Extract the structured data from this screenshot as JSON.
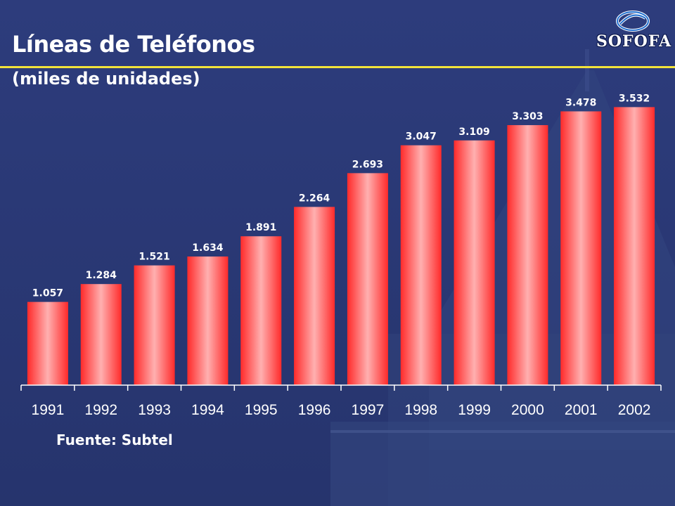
{
  "header": {
    "title": "Líneas de Teléfonos",
    "subtitle": "(miles de unidades)",
    "logo_text": "SOFOFA"
  },
  "footer": {
    "source": "Fuente: Subtel"
  },
  "colors": {
    "background": "#2b3a78",
    "accent_rule": "#f2e33a",
    "bar": "#ff3d3d",
    "bar_highlight": "#ffb0b0"
  },
  "chart_data": {
    "type": "bar",
    "categories": [
      "1991",
      "1992",
      "1993",
      "1994",
      "1995",
      "1996",
      "1997",
      "1998",
      "1999",
      "2000",
      "2001",
      "2002"
    ],
    "values": [
      1057,
      1284,
      1521,
      1634,
      1891,
      2264,
      2693,
      3047,
      3109,
      3303,
      3478,
      3532
    ],
    "value_labels": [
      "1.057",
      "1.284",
      "1.521",
      "1.634",
      "1.891",
      "2.264",
      "2.693",
      "3.047",
      "3.109",
      "3.303",
      "3.478",
      "3.532"
    ],
    "ylim": [
      0,
      4000
    ],
    "grid": false,
    "legend": "none"
  }
}
